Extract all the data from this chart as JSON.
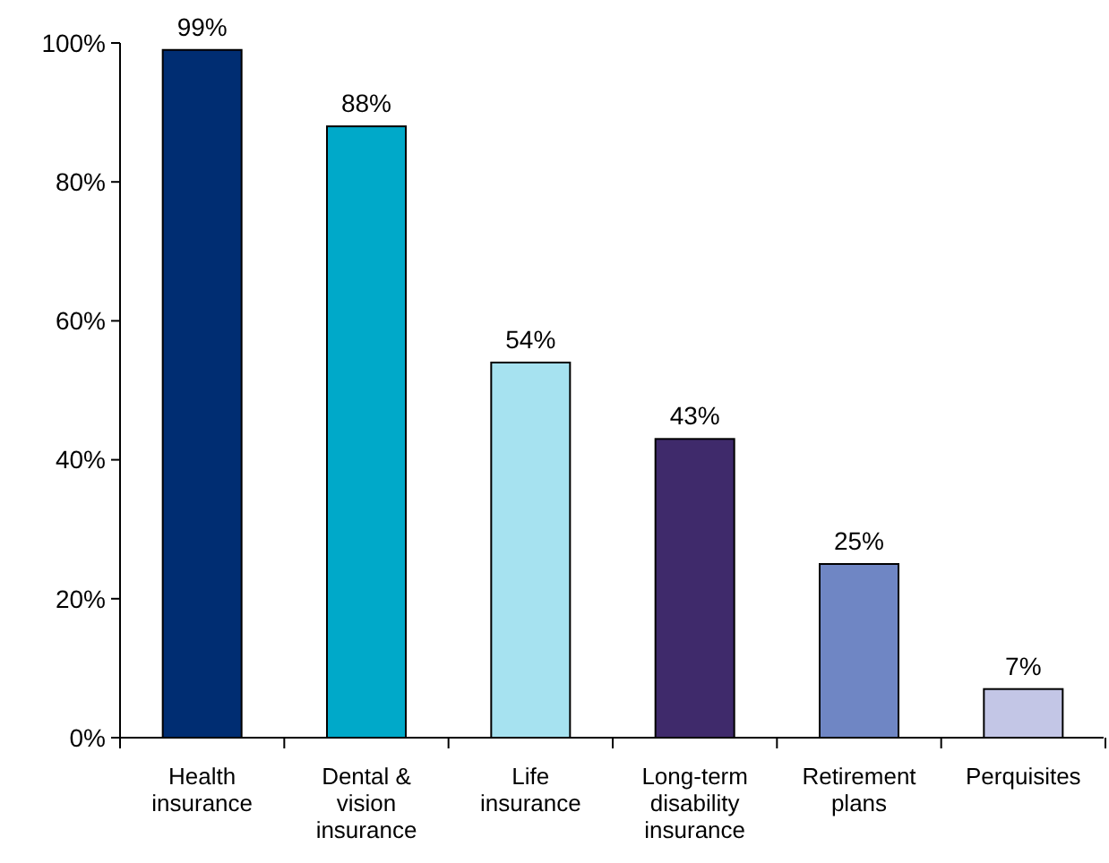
{
  "chart_data": {
    "type": "bar",
    "categories": [
      "Health insurance",
      "Dental & vision insurance",
      "Life insurance",
      "Long-term disability insurance",
      "Retirement plans",
      "Perquisites"
    ],
    "values": [
      99,
      88,
      54,
      43,
      25,
      7
    ],
    "colors": [
      "#002d72",
      "#00a9c9",
      "#a6e2f0",
      "#3f2a6b",
      "#6f86c4",
      "#c3c6e6"
    ],
    "value_labels": [
      "99%",
      "88%",
      "54%",
      "43%",
      "25%",
      "7%"
    ],
    "ylim": [
      0,
      100
    ],
    "yticks": [
      {
        "value": 0,
        "label": "0%"
      },
      {
        "value": 20,
        "label": "20%"
      },
      {
        "value": 40,
        "label": "40%"
      },
      {
        "value": 60,
        "label": "60%"
      },
      {
        "value": 80,
        "label": "80%"
      },
      {
        "value": 100,
        "label": "100%"
      }
    ],
    "grid": false
  }
}
